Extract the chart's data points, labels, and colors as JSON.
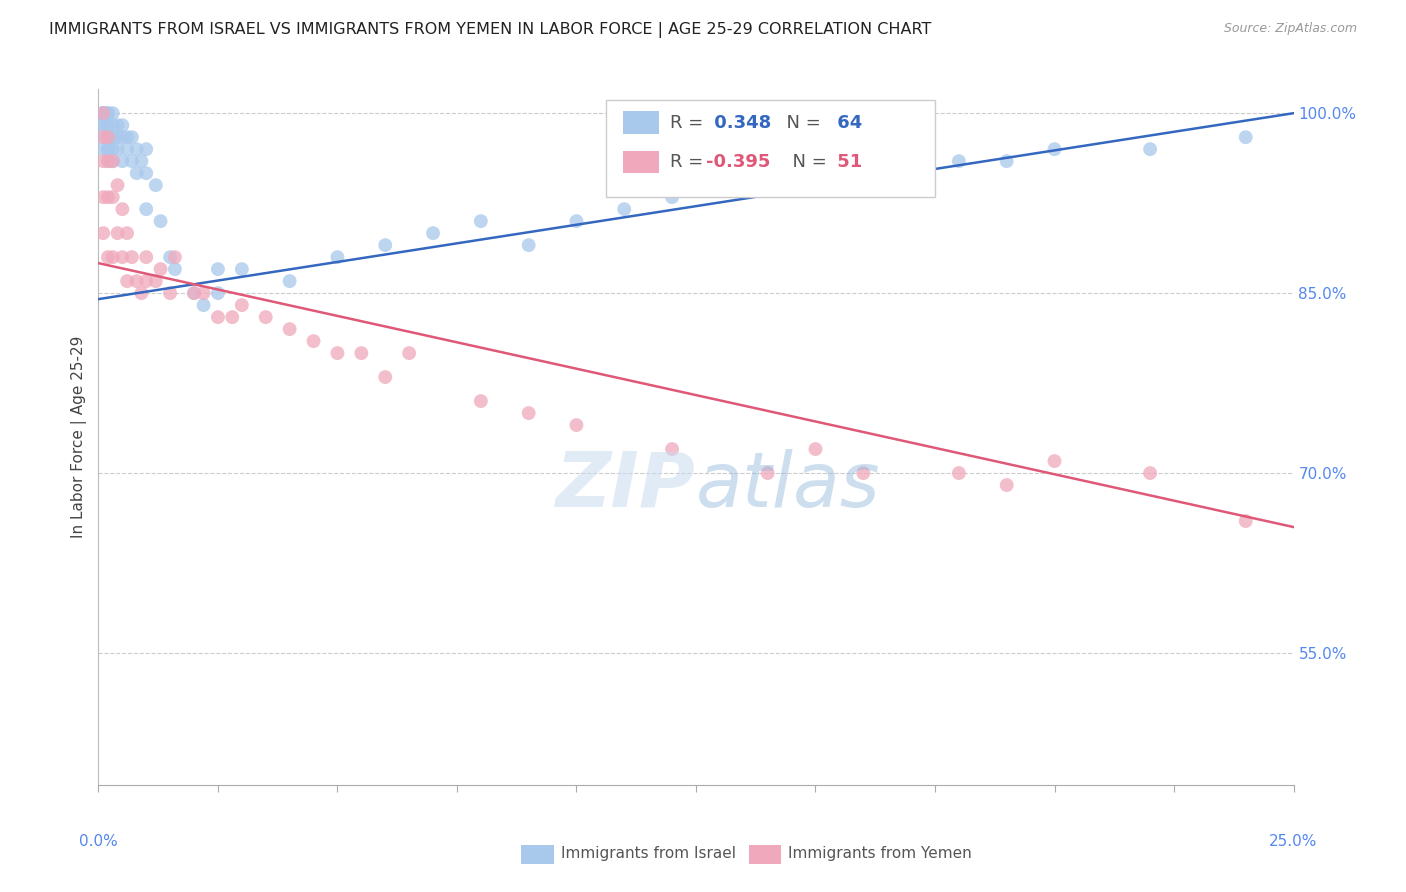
{
  "title": "IMMIGRANTS FROM ISRAEL VS IMMIGRANTS FROM YEMEN IN LABOR FORCE | AGE 25-29 CORRELATION CHART",
  "source": "Source: ZipAtlas.com",
  "ylabel": "In Labor Force | Age 25-29",
  "xlim": [
    0.0,
    0.25
  ],
  "ylim": [
    0.44,
    1.02
  ],
  "ytick_right_labels": [
    "100.0%",
    "85.0%",
    "70.0%",
    "55.0%"
  ],
  "ytick_right_values": [
    1.0,
    0.85,
    0.7,
    0.55
  ],
  "blue_color": "#A8C8EC",
  "pink_color": "#F0A8BC",
  "blue_line_color": "#3468C0",
  "pink_line_color": "#E05878",
  "israel_R": 0.348,
  "israel_N": 64,
  "yemen_R": -0.395,
  "yemen_N": 51,
  "legend_label_israel": "Immigrants from Israel",
  "legend_label_yemen": "Immigrants from Yemen",
  "israel_x": [
    0.001,
    0.001,
    0.001,
    0.001,
    0.001,
    0.001,
    0.001,
    0.001,
    0.001,
    0.001,
    0.002,
    0.002,
    0.002,
    0.002,
    0.002,
    0.002,
    0.002,
    0.003,
    0.003,
    0.003,
    0.003,
    0.003,
    0.004,
    0.004,
    0.004,
    0.005,
    0.005,
    0.005,
    0.006,
    0.006,
    0.007,
    0.007,
    0.008,
    0.008,
    0.009,
    0.01,
    0.01,
    0.01,
    0.012,
    0.013,
    0.015,
    0.016,
    0.02,
    0.022,
    0.025,
    0.025,
    0.03,
    0.04,
    0.05,
    0.06,
    0.07,
    0.08,
    0.09,
    0.1,
    0.11,
    0.12,
    0.13,
    0.15,
    0.17,
    0.18,
    0.19,
    0.2,
    0.22,
    0.24
  ],
  "israel_y": [
    1.0,
    1.0,
    1.0,
    1.0,
    1.0,
    1.0,
    0.99,
    0.99,
    0.98,
    0.97,
    1.0,
    1.0,
    0.99,
    0.98,
    0.97,
    0.97,
    0.96,
    1.0,
    0.99,
    0.98,
    0.97,
    0.96,
    0.99,
    0.98,
    0.97,
    0.99,
    0.98,
    0.96,
    0.98,
    0.97,
    0.98,
    0.96,
    0.97,
    0.95,
    0.96,
    0.97,
    0.95,
    0.92,
    0.94,
    0.91,
    0.88,
    0.87,
    0.85,
    0.84,
    0.87,
    0.85,
    0.87,
    0.86,
    0.88,
    0.89,
    0.9,
    0.91,
    0.89,
    0.91,
    0.92,
    0.93,
    0.94,
    0.95,
    0.95,
    0.96,
    0.96,
    0.97,
    0.97,
    0.98
  ],
  "yemen_x": [
    0.001,
    0.001,
    0.001,
    0.001,
    0.001,
    0.002,
    0.002,
    0.002,
    0.002,
    0.003,
    0.003,
    0.003,
    0.004,
    0.004,
    0.005,
    0.005,
    0.006,
    0.006,
    0.007,
    0.008,
    0.009,
    0.01,
    0.01,
    0.012,
    0.013,
    0.015,
    0.016,
    0.02,
    0.022,
    0.025,
    0.028,
    0.03,
    0.035,
    0.04,
    0.045,
    0.05,
    0.055,
    0.06,
    0.065,
    0.08,
    0.09,
    0.1,
    0.12,
    0.14,
    0.15,
    0.16,
    0.18,
    0.19,
    0.2,
    0.22,
    0.24
  ],
  "yemen_y": [
    1.0,
    0.98,
    0.96,
    0.93,
    0.9,
    0.98,
    0.96,
    0.93,
    0.88,
    0.96,
    0.93,
    0.88,
    0.94,
    0.9,
    0.92,
    0.88,
    0.9,
    0.86,
    0.88,
    0.86,
    0.85,
    0.88,
    0.86,
    0.86,
    0.87,
    0.85,
    0.88,
    0.85,
    0.85,
    0.83,
    0.83,
    0.84,
    0.83,
    0.82,
    0.81,
    0.8,
    0.8,
    0.78,
    0.8,
    0.76,
    0.75,
    0.74,
    0.72,
    0.7,
    0.72,
    0.7,
    0.7,
    0.69,
    0.71,
    0.7,
    0.66
  ]
}
